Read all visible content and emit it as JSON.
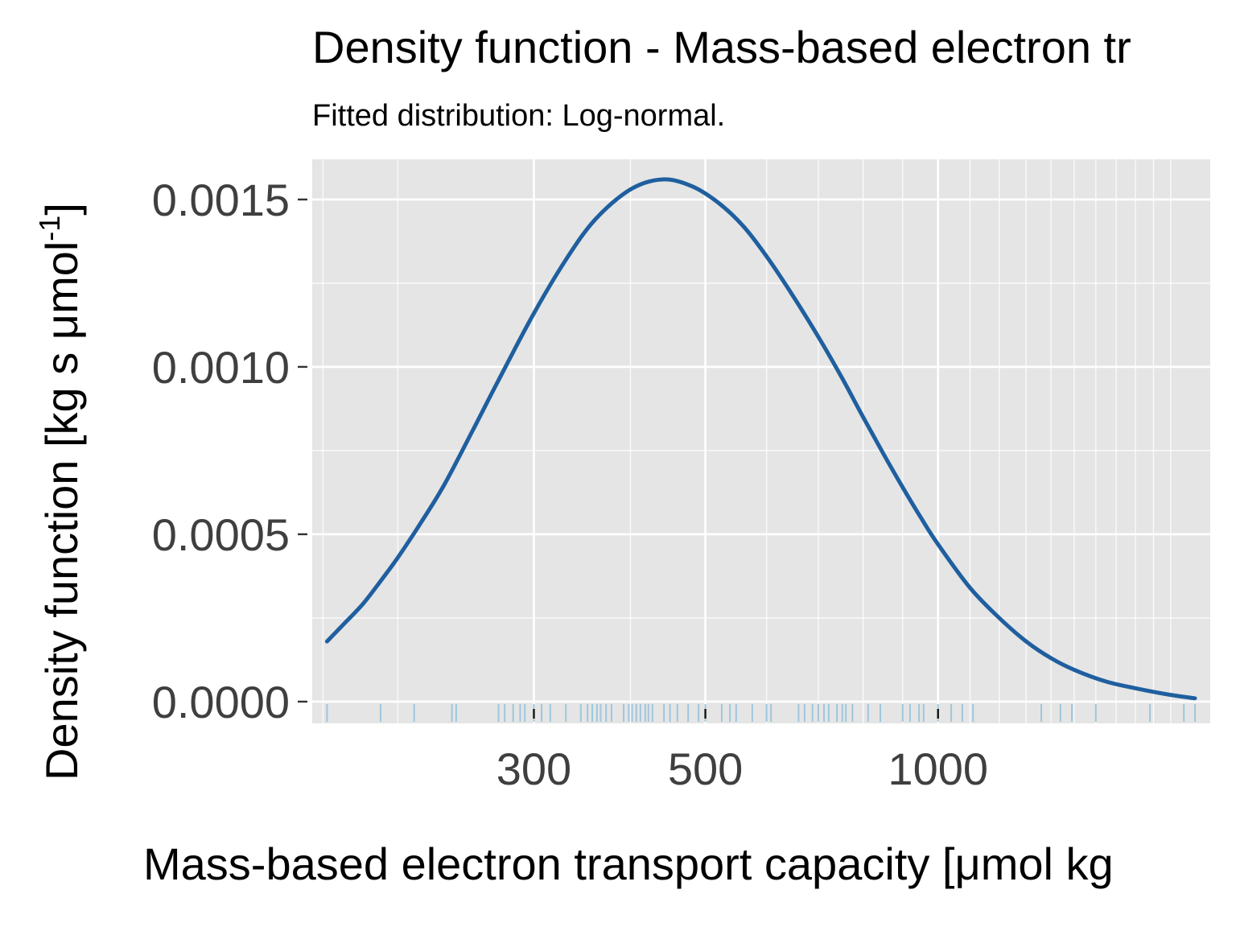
{
  "colors": {
    "panel_background": "#e5e5e5",
    "grid": "#ffffff",
    "curve": "#1f5f9f",
    "rug": "#9ec6dc",
    "tick_text": "#3f3f3f"
  },
  "chart_data": {
    "type": "line",
    "title": "Density function - Mass-based electron tr",
    "subtitle": "Fitted distribution: Log-normal.",
    "xlabel": "Mass-based electron transport capacity [μmol kg",
    "ylabel": "Density function [kg s μmol",
    "ylabel_superscript": "-1",
    "ylabel_suffix": "]",
    "x_scale": "log",
    "xlim": [
      155,
      2250
    ],
    "ylim": [
      -6.5e-05,
      0.00162
    ],
    "x_ticks": [
      300,
      500,
      1000
    ],
    "x_tick_labels": [
      "300",
      "500",
      "1000"
    ],
    "y_ticks": [
      0.0,
      0.0005,
      0.001,
      0.0015
    ],
    "y_tick_labels": [
      "0.0000",
      "0.0005",
      "0.0010",
      "0.0015"
    ],
    "grid": true,
    "legend": "none",
    "series": [
      {
        "x": [
          162,
          170,
          180,
          190,
          200,
          215,
          230,
          250,
          270,
          300,
          330,
          360,
          400,
          440,
          480,
          520,
          560,
          600,
          650,
          700,
          750,
          800,
          850,
          900,
          950,
          1000,
          1100,
          1200,
          1300,
          1400,
          1500,
          1650,
          1800,
          2000,
          2150
        ],
        "y": [
          0.00018,
          0.00023,
          0.00029,
          0.00036,
          0.00043,
          0.00054,
          0.00065,
          0.00081,
          0.00096,
          0.00116,
          0.00132,
          0.00144,
          0.00153,
          0.00156,
          0.00154,
          0.00149,
          0.00142,
          0.00133,
          0.00121,
          0.00109,
          0.00097,
          0.00085,
          0.00074,
          0.00064,
          0.00055,
          0.00047,
          0.00034,
          0.00025,
          0.00018,
          0.00013,
          9.5e-05,
          6e-05,
          4e-05,
          2e-05,
          1e-05
        ]
      }
    ],
    "rug": [
      162,
      190,
      210,
      235,
      238,
      270,
      275,
      282,
      288,
      292,
      300,
      307,
      315,
      330,
      345,
      352,
      357,
      362,
      366,
      372,
      378,
      392,
      398,
      402,
      407,
      412,
      418,
      422,
      427,
      442,
      450,
      460,
      475,
      490,
      500,
      525,
      538,
      548,
      575,
      600,
      608,
      660,
      672,
      688,
      700,
      712,
      722,
      740,
      752,
      760,
      775,
      812,
      842,
      900,
      920,
      945,
      958,
      1000,
      1040,
      1075,
      1110,
      1360,
      1440,
      1490,
      1600,
      1880,
      2080,
      2150
    ]
  }
}
